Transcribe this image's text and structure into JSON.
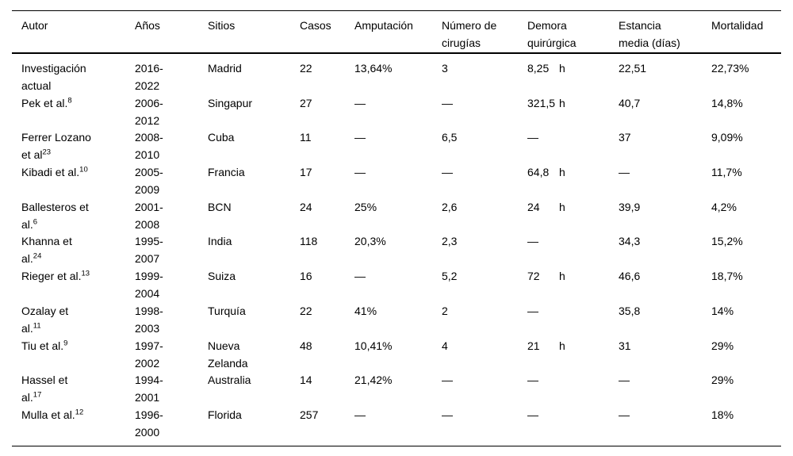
{
  "colors": {
    "background": "#ffffff",
    "text": "#000000",
    "rule": "#000000"
  },
  "table": {
    "columns": [
      {
        "key": "autor",
        "lines": [
          "Autor"
        ]
      },
      {
        "key": "anos",
        "lines": [
          "Años"
        ]
      },
      {
        "key": "sitios",
        "lines": [
          "Sitios"
        ]
      },
      {
        "key": "casos",
        "lines": [
          "Casos"
        ]
      },
      {
        "key": "amputacion",
        "lines": [
          "Amputación"
        ]
      },
      {
        "key": "cirugias",
        "lines": [
          "Número de",
          "cirugías"
        ]
      },
      {
        "key": "demora",
        "lines": [
          "Demora",
          "quirúrgica"
        ]
      },
      {
        "key": "estancia",
        "lines": [
          "Estancia",
          "media (días)"
        ]
      },
      {
        "key": "mortalidad",
        "lines": [
          "Mortalidad"
        ]
      }
    ],
    "rows": [
      {
        "autor": {
          "lines": [
            "Investigación",
            "actual"
          ],
          "sup": ""
        },
        "anos": {
          "lines": [
            "2016-",
            "2022"
          ]
        },
        "sitios": {
          "lines": [
            "Madrid"
          ]
        },
        "casos": "22",
        "amputacion": "13,64%",
        "cirugias": "3",
        "demora": {
          "value": "8,25",
          "unit": "h"
        },
        "estancia": "22,51",
        "mortalidad": "22,73%"
      },
      {
        "autor": {
          "lines": [
            "Pek et al."
          ],
          "sup": "8"
        },
        "anos": {
          "lines": [
            "2006-",
            "2012"
          ]
        },
        "sitios": {
          "lines": [
            "Singapur"
          ]
        },
        "casos": "27",
        "amputacion": "—",
        "cirugias": "—",
        "demora": {
          "value": "321,5",
          "unit": "h"
        },
        "estancia": "40,7",
        "mortalidad": "14,8%"
      },
      {
        "autor": {
          "lines": [
            "Ferrer Lozano",
            "et al"
          ],
          "sup": "23"
        },
        "anos": {
          "lines": [
            "2008-",
            "2010"
          ]
        },
        "sitios": {
          "lines": [
            "Cuba"
          ]
        },
        "casos": "11",
        "amputacion": "—",
        "cirugias": "6,5",
        "demora": {
          "value": "—",
          "unit": ""
        },
        "estancia": "37",
        "mortalidad": "9,09%"
      },
      {
        "autor": {
          "lines": [
            "Kibadi et al."
          ],
          "sup": "10"
        },
        "anos": {
          "lines": [
            "2005-",
            "2009"
          ]
        },
        "sitios": {
          "lines": [
            "Francia"
          ]
        },
        "casos": "17",
        "amputacion": "—",
        "cirugias": "—",
        "demora": {
          "value": "64,8",
          "unit": "h"
        },
        "estancia": "—",
        "mortalidad": "11,7%"
      },
      {
        "autor": {
          "lines": [
            "Ballesteros et",
            "al."
          ],
          "sup": "6"
        },
        "anos": {
          "lines": [
            "2001-",
            "2008"
          ]
        },
        "sitios": {
          "lines": [
            "BCN"
          ]
        },
        "casos": "24",
        "amputacion": "25%",
        "cirugias": "2,6",
        "demora": {
          "value": "24",
          "unit": "h"
        },
        "estancia": "39,9",
        "mortalidad": "4,2%"
      },
      {
        "autor": {
          "lines": [
            "Khanna et",
            "al."
          ],
          "sup": "24"
        },
        "anos": {
          "lines": [
            "1995-",
            "2007"
          ]
        },
        "sitios": {
          "lines": [
            "India"
          ]
        },
        "casos": "118",
        "amputacion": "20,3%",
        "cirugias": "2,3",
        "demora": {
          "value": "—",
          "unit": ""
        },
        "estancia": "34,3",
        "mortalidad": "15,2%"
      },
      {
        "autor": {
          "lines": [
            "Rieger et al."
          ],
          "sup": "13"
        },
        "anos": {
          "lines": [
            "1999-",
            "2004"
          ]
        },
        "sitios": {
          "lines": [
            "Suiza"
          ]
        },
        "casos": "16",
        "amputacion": "—",
        "cirugias": "5,2",
        "demora": {
          "value": "72",
          "unit": "h"
        },
        "estancia": "46,6",
        "mortalidad": "18,7%"
      },
      {
        "autor": {
          "lines": [
            "Ozalay et",
            "al."
          ],
          "sup": "11"
        },
        "anos": {
          "lines": [
            "1998-",
            "2003"
          ]
        },
        "sitios": {
          "lines": [
            "Turquía"
          ]
        },
        "casos": "22",
        "amputacion": "41%",
        "cirugias": "2",
        "demora": {
          "value": "—",
          "unit": ""
        },
        "estancia": "35,8",
        "mortalidad": "14%"
      },
      {
        "autor": {
          "lines": [
            "Tiu et al."
          ],
          "sup": "9"
        },
        "anos": {
          "lines": [
            "1997-",
            "2002"
          ]
        },
        "sitios": {
          "lines": [
            "Nueva",
            "Zelanda"
          ]
        },
        "casos": "48",
        "amputacion": "10,41%",
        "cirugias": "4",
        "demora": {
          "value": "21",
          "unit": "h"
        },
        "estancia": "31",
        "mortalidad": "29%"
      },
      {
        "autor": {
          "lines": [
            "Hassel et",
            "al."
          ],
          "sup": "17"
        },
        "anos": {
          "lines": [
            "1994-",
            "2001"
          ]
        },
        "sitios": {
          "lines": [
            "Australia"
          ]
        },
        "casos": "14",
        "amputacion": "21,42%",
        "cirugias": "—",
        "demora": {
          "value": "—",
          "unit": ""
        },
        "estancia": "—",
        "mortalidad": "29%"
      },
      {
        "autor": {
          "lines": [
            "Mulla et al."
          ],
          "sup": "12"
        },
        "anos": {
          "lines": [
            "1996-",
            "2000"
          ]
        },
        "sitios": {
          "lines": [
            "Florida"
          ]
        },
        "casos": "257",
        "amputacion": "—",
        "cirugias": "—",
        "demora": {
          "value": "—",
          "unit": ""
        },
        "estancia": "—",
        "mortalidad": "18%"
      }
    ]
  }
}
